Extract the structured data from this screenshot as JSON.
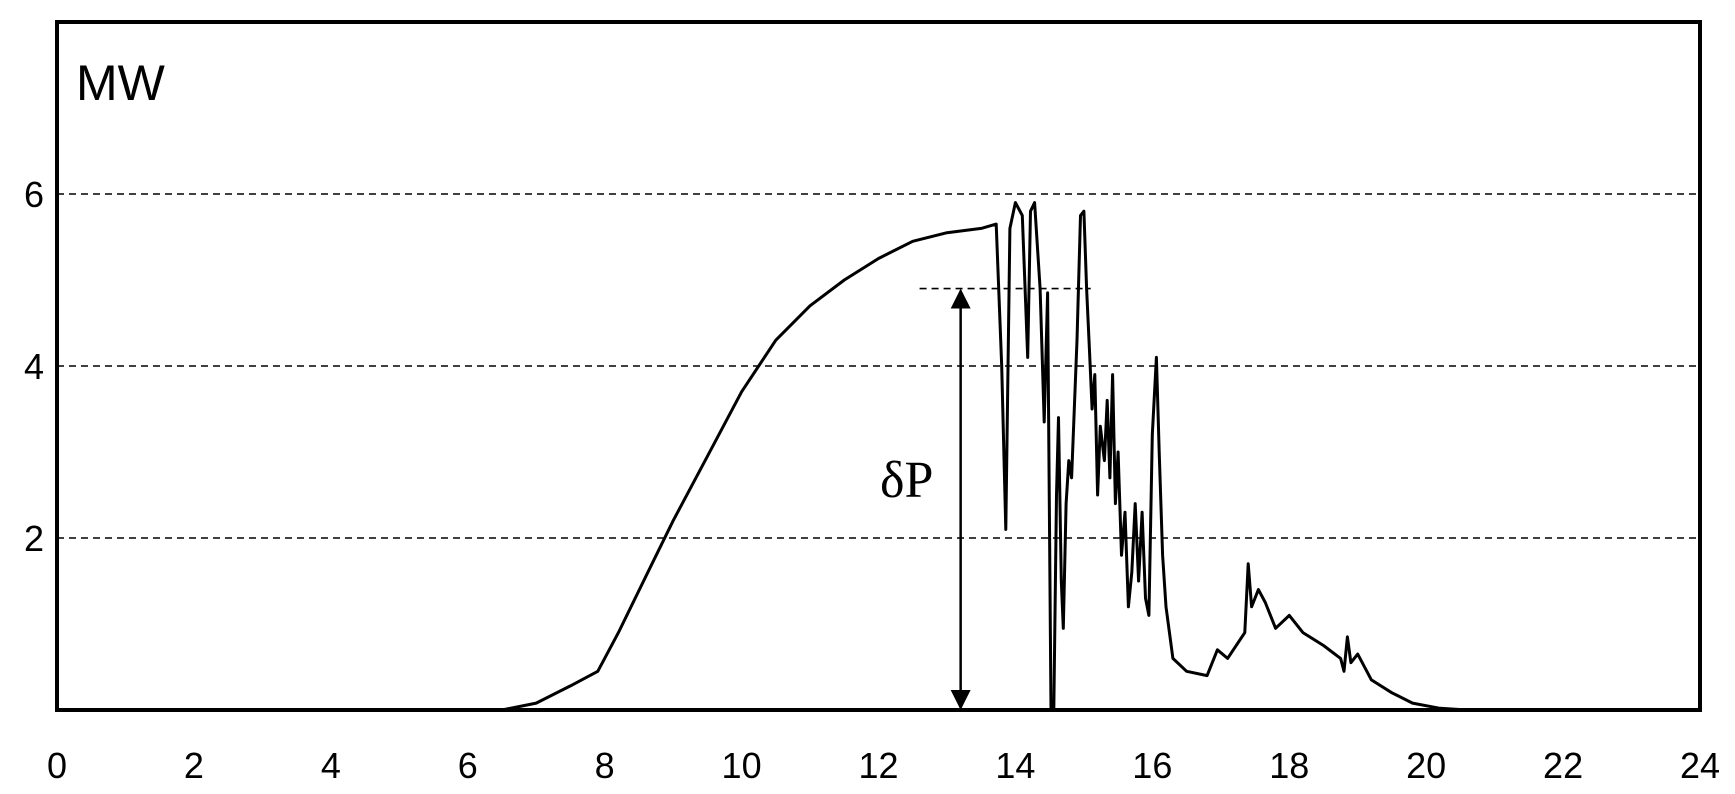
{
  "chart_data": {
    "type": "line",
    "title": "",
    "xlabel": "",
    "ylabel": "MW",
    "xlim": [
      0,
      24
    ],
    "ylim": [
      0,
      8
    ],
    "x_ticks": [
      0,
      2,
      4,
      6,
      8,
      10,
      12,
      14,
      16,
      18,
      20,
      22,
      24
    ],
    "y_ticks": [
      2,
      4,
      6
    ],
    "grid": {
      "horizontal": true,
      "style": "dashed",
      "at": [
        2,
        4,
        6
      ]
    },
    "legend": "none",
    "series": [
      {
        "color": "#000000",
        "x": [
          0,
          6.5,
          7.0,
          7.5,
          7.9,
          8.2,
          8.6,
          9.0,
          9.5,
          10.0,
          10.5,
          11.0,
          11.5,
          12.0,
          12.5,
          13.0,
          13.5,
          13.72,
          13.8,
          13.86,
          13.92,
          14.0,
          14.1,
          14.18,
          14.22,
          14.28,
          14.36,
          14.42,
          14.47,
          14.52,
          14.56,
          14.6,
          14.63,
          14.67,
          14.7,
          14.74,
          14.78,
          14.82,
          14.86,
          14.9,
          14.95,
          15.0,
          15.04,
          15.08,
          15.12,
          15.16,
          15.2,
          15.24,
          15.3,
          15.34,
          15.38,
          15.42,
          15.46,
          15.5,
          15.55,
          15.6,
          15.65,
          15.7,
          15.75,
          15.8,
          15.85,
          15.9,
          15.95,
          16.0,
          16.06,
          16.1,
          16.15,
          16.2,
          16.3,
          16.5,
          16.8,
          16.95,
          17.1,
          17.35,
          17.4,
          17.45,
          17.55,
          17.65,
          17.8,
          18.0,
          18.2,
          18.5,
          18.75,
          18.8,
          18.85,
          18.9,
          19.0,
          19.2,
          19.5,
          19.8,
          20.2,
          20.6,
          21.0,
          24.0
        ],
        "y": [
          0,
          0,
          0.08,
          0.28,
          0.45,
          0.9,
          1.55,
          2.2,
          2.95,
          3.7,
          4.3,
          4.7,
          5.0,
          5.25,
          5.45,
          5.55,
          5.6,
          5.65,
          4.0,
          2.1,
          5.6,
          5.9,
          5.75,
          4.1,
          5.8,
          5.9,
          4.9,
          3.35,
          4.85,
          0,
          0,
          2.5,
          3.4,
          1.5,
          0.95,
          2.4,
          2.9,
          2.7,
          3.5,
          4.3,
          5.75,
          5.8,
          4.9,
          4.2,
          3.5,
          3.9,
          2.5,
          3.3,
          2.9,
          3.6,
          2.7,
          3.9,
          2.4,
          3.0,
          1.8,
          2.3,
          1.2,
          1.6,
          2.4,
          1.5,
          2.3,
          1.3,
          1.1,
          3.2,
          4.1,
          3.0,
          1.8,
          1.2,
          0.6,
          0.45,
          0.4,
          0.7,
          0.6,
          0.9,
          1.7,
          1.2,
          1.4,
          1.25,
          0.95,
          1.1,
          0.9,
          0.75,
          0.6,
          0.45,
          0.85,
          0.55,
          0.65,
          0.35,
          0.2,
          0.08,
          0.02,
          0,
          0,
          0
        ]
      }
    ],
    "annotations": [
      {
        "type": "double-arrow",
        "x": 13.2,
        "y_from": 0,
        "y_to": 4.9,
        "label": "δP"
      },
      {
        "type": "dashed-segment",
        "x_from": 12.6,
        "x_to": 15.1,
        "y": 4.9
      }
    ]
  },
  "labels": {
    "unit": "MW",
    "delta": "δP"
  }
}
